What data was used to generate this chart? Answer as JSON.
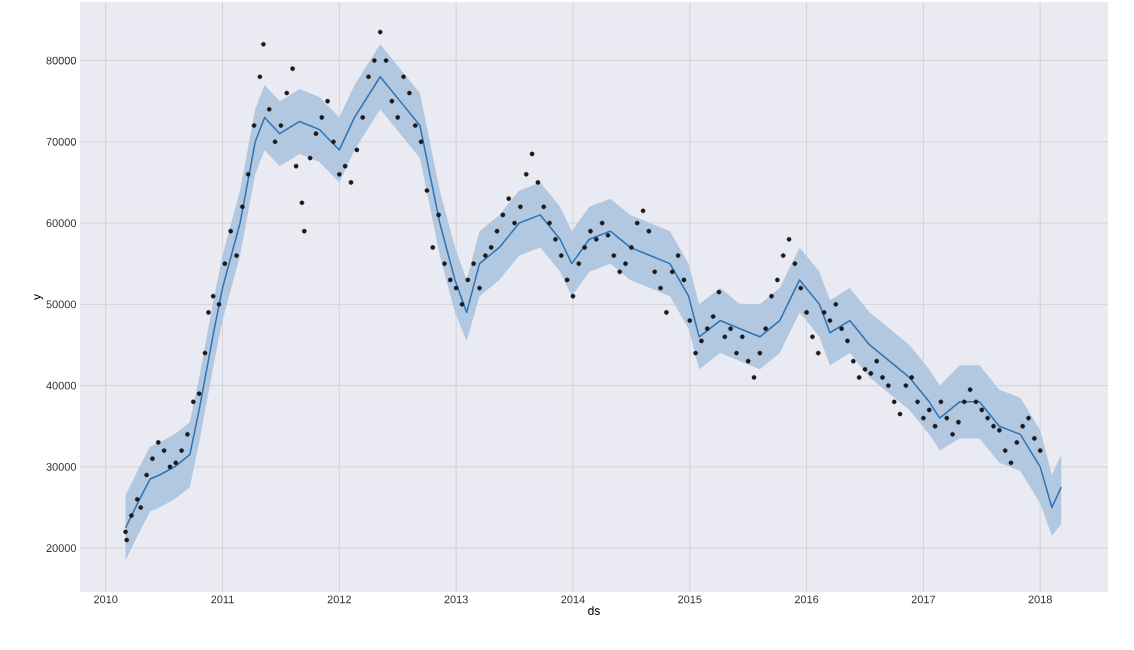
{
  "chart_data": {
    "type": "scatter",
    "xlabel": "ds",
    "ylabel": "y",
    "xlim": [
      2009.78,
      2018.58
    ],
    "ylim": [
      14600,
      87200
    ],
    "xticks": [
      2010,
      2011,
      2012,
      2013,
      2014,
      2015,
      2016,
      2017,
      2018
    ],
    "yticks": [
      20000,
      30000,
      40000,
      50000,
      60000,
      70000,
      80000
    ],
    "grid": true,
    "marker": "circle",
    "series": [
      {
        "color": "#1a1a1a",
        "x": [
          2010.17,
          2010.18,
          2010.22,
          2010.27,
          2010.3,
          2010.35,
          2010.4,
          2010.45,
          2010.5,
          2010.55,
          2010.6,
          2010.65,
          2010.7,
          2010.75,
          2010.8,
          2010.85,
          2010.88,
          2010.92,
          2010.97,
          2011.02,
          2011.07,
          2011.12,
          2011.17,
          2011.22,
          2011.27,
          2011.32,
          2011.35,
          2011.4,
          2011.45,
          2011.5,
          2011.55,
          2011.6,
          2011.63,
          2011.68,
          2011.7,
          2011.75,
          2011.8,
          2011.85,
          2011.9,
          2011.95,
          2012.0,
          2012.05,
          2012.1,
          2012.15,
          2012.2,
          2012.25,
          2012.3,
          2012.35,
          2012.4,
          2012.45,
          2012.5,
          2012.55,
          2012.6,
          2012.65,
          2012.7,
          2012.75,
          2012.8,
          2012.85,
          2012.9,
          2012.95,
          2013.0,
          2013.05,
          2013.1,
          2013.15,
          2013.2,
          2013.25,
          2013.3,
          2013.35,
          2013.4,
          2013.45,
          2013.5,
          2013.55,
          2013.6,
          2013.65,
          2013.7,
          2013.75,
          2013.8,
          2013.85,
          2013.9,
          2013.95,
          2014.0,
          2014.05,
          2014.1,
          2014.15,
          2014.2,
          2014.25,
          2014.3,
          2014.35,
          2014.4,
          2014.45,
          2014.5,
          2014.55,
          2014.6,
          2014.65,
          2014.7,
          2014.75,
          2014.8,
          2014.85,
          2014.9,
          2014.95,
          2015.0,
          2015.05,
          2015.1,
          2015.15,
          2015.2,
          2015.25,
          2015.3,
          2015.35,
          2015.4,
          2015.45,
          2015.5,
          2015.55,
          2015.6,
          2015.65,
          2015.7,
          2015.75,
          2015.8,
          2015.85,
          2015.9,
          2015.95,
          2016.0,
          2016.05,
          2016.1,
          2016.15,
          2016.2,
          2016.25,
          2016.3,
          2016.35,
          2016.4,
          2016.45,
          2016.5,
          2016.55,
          2016.6,
          2016.65,
          2016.7,
          2016.75,
          2016.8,
          2016.85,
          2016.9,
          2016.95,
          2017.0,
          2017.05,
          2017.1,
          2017.15,
          2017.2,
          2017.25,
          2017.3,
          2017.35,
          2017.4,
          2017.45,
          2017.5,
          2017.55,
          2017.6,
          2017.65,
          2017.7,
          2017.75,
          2017.8,
          2017.85,
          2017.9,
          2017.95,
          2018.0
        ],
        "values": [
          22000,
          21000,
          24000,
          26000,
          25000,
          29000,
          31000,
          33000,
          32000,
          30000,
          30500,
          32000,
          34000,
          38000,
          39000,
          44000,
          49000,
          51000,
          50000,
          55000,
          59000,
          56000,
          62000,
          66000,
          72000,
          78000,
          82000,
          74000,
          70000,
          72000,
          76000,
          79000,
          67000,
          62500,
          59000,
          68000,
          71000,
          73000,
          75000,
          70000,
          66000,
          67000,
          65000,
          69000,
          73000,
          78000,
          80000,
          83500,
          80000,
          75000,
          73000,
          78000,
          76000,
          72000,
          70000,
          64000,
          57000,
          61000,
          55000,
          53000,
          52000,
          50000,
          53000,
          55000,
          52000,
          56000,
          57000,
          59000,
          61000,
          63000,
          60000,
          62000,
          66000,
          68500,
          65000,
          62000,
          60000,
          58000,
          56000,
          53000,
          51000,
          55000,
          57000,
          59000,
          58000,
          60000,
          58500,
          56000,
          54000,
          55000,
          57000,
          60000,
          61500,
          59000,
          54000,
          52000,
          49000,
          54000,
          56000,
          53000,
          48000,
          44000,
          45500,
          47000,
          48500,
          51500,
          46000,
          47000,
          44000,
          46000,
          43000,
          41000,
          44000,
          47000,
          51000,
          53000,
          56000,
          58000,
          55000,
          52000,
          49000,
          46000,
          44000,
          49000,
          48000,
          50000,
          47000,
          45500,
          43000,
          41000,
          42000,
          41500,
          43000,
          41000,
          40000,
          38000,
          36500,
          40000,
          41000,
          38000,
          36000,
          37000,
          35000,
          38000,
          36000,
          34000,
          35500,
          38000,
          39500,
          38000,
          37000,
          36000,
          35000,
          34500,
          32000,
          30500,
          33000,
          35000,
          36000,
          33500,
          32000
        ]
      },
      {
        "type": "line",
        "marker": "none",
        "color": "#2e74b5",
        "x": [
          2010.17,
          2010.29,
          2010.38,
          2010.46,
          2010.59,
          2010.72,
          2010.8,
          2010.93,
          2011.0,
          2011.15,
          2011.28,
          2011.36,
          2011.49,
          2011.66,
          2011.83,
          2012.0,
          2012.13,
          2012.35,
          2012.52,
          2012.69,
          2012.86,
          2012.99,
          2013.09,
          2013.2,
          2013.37,
          2013.54,
          2013.72,
          2013.89,
          2013.99,
          2014.14,
          2014.32,
          2014.49,
          2014.66,
          2014.83,
          2014.99,
          2015.08,
          2015.26,
          2015.43,
          2015.6,
          2015.77,
          2015.94,
          2016.11,
          2016.2,
          2016.37,
          2016.54,
          2016.71,
          2016.88,
          2017.05,
          2017.14,
          2017.31,
          2017.48,
          2017.65,
          2017.83,
          2018.0,
          2018.1,
          2018.18
        ],
        "values": [
          22500,
          26000,
          28500,
          29000,
          30000,
          31500,
          37000,
          47000,
          52000,
          60000,
          70000,
          73000,
          71000,
          72500,
          71500,
          69000,
          73000,
          78000,
          75000,
          72000,
          60000,
          53000,
          49000,
          55000,
          57000,
          60000,
          61000,
          58000,
          55000,
          58000,
          59000,
          57000,
          56000,
          55000,
          51000,
          46000,
          48000,
          47000,
          46000,
          48000,
          53000,
          50000,
          46500,
          48000,
          45000,
          43000,
          41000,
          38000,
          36000,
          38000,
          38000,
          35000,
          34000,
          30000,
          25000,
          27500
        ],
        "lower": [
          18500,
          22000,
          24500,
          25000,
          26000,
          27500,
          33000,
          43000,
          48000,
          56000,
          66000,
          69000,
          67000,
          68500,
          67500,
          65000,
          69000,
          74000,
          71000,
          68000,
          56000,
          49000,
          45500,
          51000,
          53000,
          56000,
          57000,
          54000,
          51000,
          54000,
          55000,
          53000,
          52000,
          51000,
          47000,
          42000,
          44000,
          43000,
          42000,
          44000,
          49000,
          46000,
          42500,
          44000,
          41000,
          39000,
          37000,
          34000,
          32000,
          33500,
          33500,
          30500,
          29500,
          25500,
          21500,
          23000
        ],
        "upper": [
          26500,
          30000,
          32500,
          33000,
          34000,
          35500,
          41000,
          51000,
          56000,
          64000,
          74000,
          77000,
          75000,
          76500,
          75500,
          73000,
          77000,
          82000,
          79000,
          76000,
          64000,
          57000,
          53000,
          59000,
          61000,
          64000,
          65000,
          62000,
          59000,
          62000,
          63000,
          61000,
          60000,
          59000,
          55000,
          50000,
          52000,
          50000,
          50000,
          52000,
          57000,
          54000,
          50500,
          52000,
          49000,
          47000,
          45000,
          42000,
          40000,
          42500,
          42500,
          39500,
          38500,
          34500,
          29000,
          31500
        ]
      }
    ]
  }
}
